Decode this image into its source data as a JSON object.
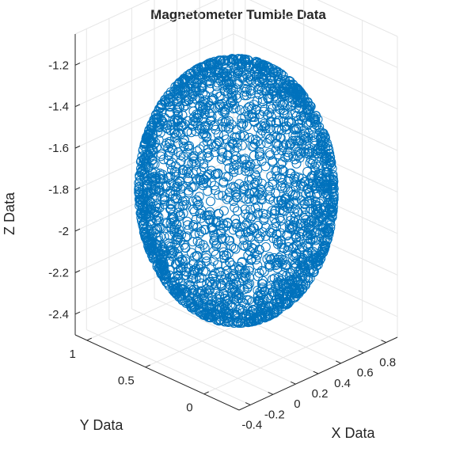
{
  "chart_data": {
    "type": "scatter3d",
    "title": "Magnetometer Tumble Data",
    "xlabel": "X Data",
    "ylabel": "Y Data",
    "zlabel": "Z Data",
    "x_ticks": [
      "-0.4",
      "-0.2",
      "0",
      "0.2",
      "0.4",
      "0.6",
      "0.8"
    ],
    "x_tick_values": [
      -0.4,
      -0.2,
      0,
      0.2,
      0.4,
      0.6,
      0.8
    ],
    "y_ticks": [
      "0",
      "0.5",
      "1"
    ],
    "y_tick_values": [
      0,
      0.5,
      1
    ],
    "z_ticks": [
      "-1.2",
      "-1.4",
      "-1.6",
      "-1.8",
      "-2",
      "-2.2",
      "-2.4"
    ],
    "z_tick_values": [
      -1.2,
      -1.4,
      -1.6,
      -1.8,
      -2,
      -2.2,
      -2.4
    ],
    "xlim": [
      -0.5,
      0.9
    ],
    "ylim": [
      -0.3,
      1.1
    ],
    "zlim": [
      -2.5,
      -1.05
    ],
    "grid": true,
    "marker": "o",
    "series": [
      {
        "color": "#0072bd",
        "shape": "sphere",
        "center": [
          0.2,
          0.4,
          -1.8
        ],
        "radius": 0.6,
        "point_count": 2600
      }
    ]
  }
}
